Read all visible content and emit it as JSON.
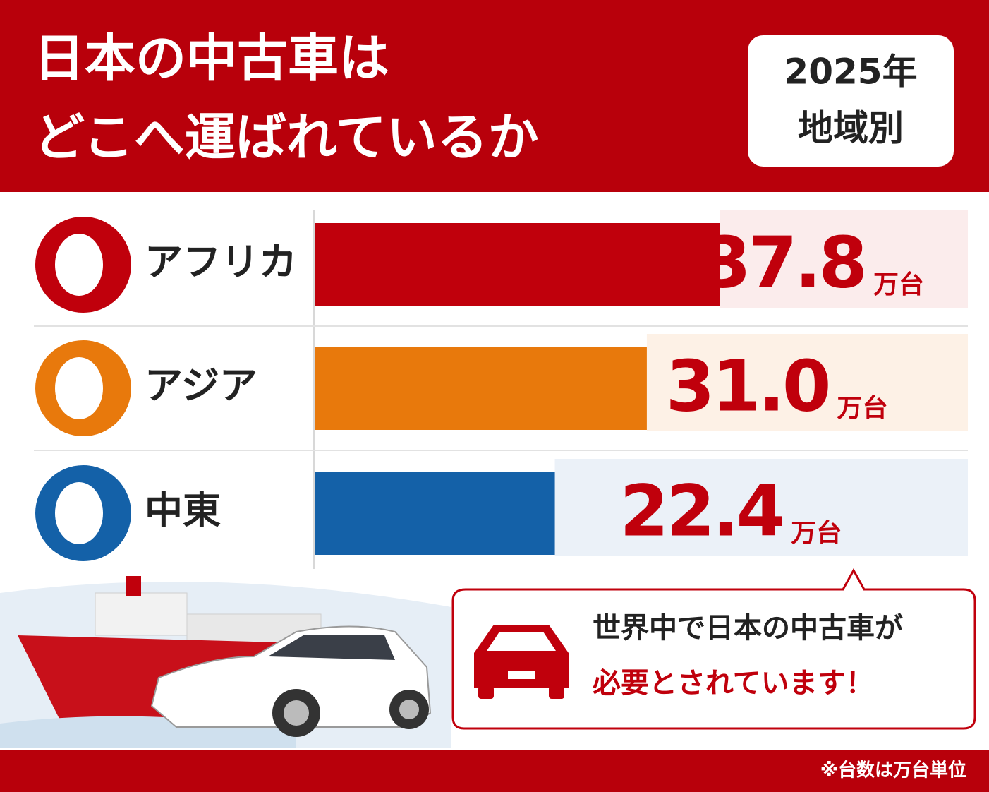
{
  "chart_data": {
    "type": "bar",
    "orientation": "horizontal",
    "title": [
      "日本の中古車は",
      "どこへ運ばれているか"
    ],
    "badge": [
      "2025年",
      "地域別"
    ],
    "categories": [
      "アフリカ",
      "アジア",
      "中東"
    ],
    "values": [
      37.8,
      31.0,
      22.4
    ],
    "value_labels": [
      "37.8",
      "31.0",
      "22.4"
    ],
    "unit": "万台",
    "colors": [
      "#c0000c",
      "#e8790c",
      "#1461a8"
    ],
    "callout": [
      "世界中で日本の中古車が",
      "必要とされています！"
    ],
    "footnote": "※台数は万台単位"
  }
}
